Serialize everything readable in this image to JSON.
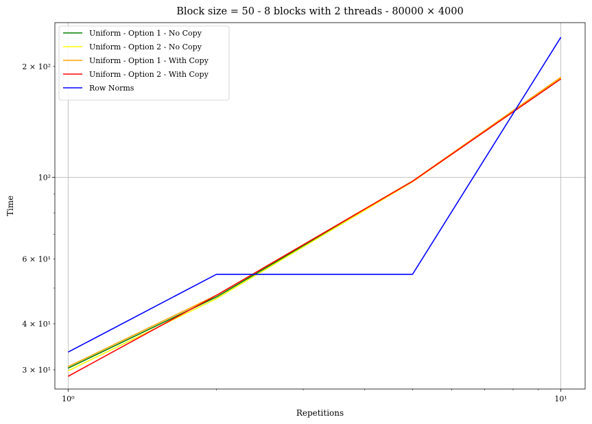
{
  "chart_data": {
    "type": "line",
    "title": "Block size = 50 - 8 blocks with 2 threads - 80000 × 4000",
    "xlabel": "Repetitions",
    "ylabel": "Time",
    "xscale": "log",
    "yscale": "log",
    "xlim": [
      0.94,
      11.2
    ],
    "ylim": [
      26.6,
      263
    ],
    "x": [
      1,
      2,
      5,
      10
    ],
    "series": [
      {
        "name": "Uniform - Option 1 - No Copy",
        "color": "#008000",
        "values": [
          30.3,
          47.3,
          97.5,
          185
        ]
      },
      {
        "name": "Uniform - Option 2 - No Copy",
        "color": "#ffff00",
        "values": [
          29.8,
          46.8,
          97.2,
          186
        ]
      },
      {
        "name": "Uniform - Option 1 - With Copy",
        "color": "#ffa500",
        "values": [
          30.6,
          47.8,
          97.7,
          187
        ]
      },
      {
        "name": "Uniform - Option 2 - With Copy",
        "color": "#ff0000",
        "values": [
          28.8,
          47.8,
          97.5,
          185
        ]
      },
      {
        "name": "Row Norms",
        "color": "#0000ff",
        "values": [
          33.5,
          54.5,
          54.5,
          240
        ]
      }
    ],
    "xticks": [
      {
        "value": 1,
        "label": "10⁰"
      },
      {
        "value": 10,
        "label": "10¹"
      }
    ],
    "yticks": [
      {
        "value": 30,
        "label": "3 × 10¹"
      },
      {
        "value": 40,
        "label": "4 × 10¹"
      },
      {
        "value": 60,
        "label": "6 × 10¹"
      },
      {
        "value": 100,
        "label": "10²"
      },
      {
        "value": 200,
        "label": "2 × 10²"
      }
    ],
    "grid": "major",
    "legend_position": "top-left"
  }
}
